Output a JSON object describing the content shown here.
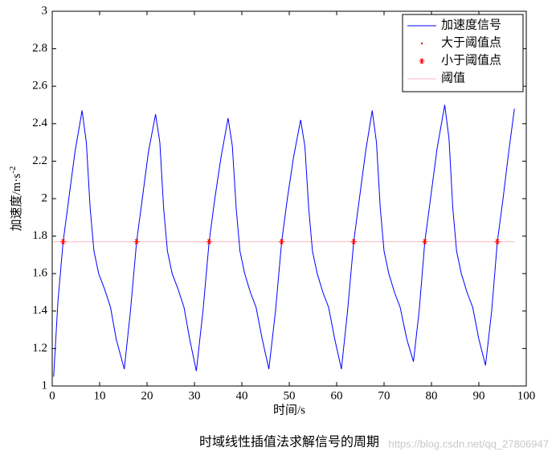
{
  "chart_data": {
    "type": "line",
    "xlabel": "时间/s",
    "ylabel": "加速度/m·s",
    "ylabel_sup": "-2",
    "caption": "时域线性插值法求解信号的周期",
    "watermark": "https://blog.csdn.net/qq_27806947",
    "xlim": [
      0,
      100
    ],
    "ylim": [
      1,
      3
    ],
    "xticks": [
      0,
      10,
      20,
      30,
      40,
      50,
      60,
      70,
      80,
      90,
      100
    ],
    "yticks": [
      1,
      {
        "value": 1.2,
        "label": "1.2"
      },
      {
        "value": 1.4,
        "label": "1.4"
      },
      {
        "value": 1.6,
        "label": "1.6"
      },
      {
        "value": 1.8,
        "label": "1.8"
      },
      2,
      {
        "value": 2.2,
        "label": "2.2"
      },
      {
        "value": 2.4,
        "label": "2.4"
      },
      {
        "value": 2.6,
        "label": "2.6"
      },
      {
        "value": 2.8,
        "label": "2.8"
      },
      3
    ],
    "legend": "upper right",
    "series": [
      {
        "name": "加速度信号",
        "color": "#0000ff",
        "marker": "none",
        "x": [
          0.3,
          1.2,
          2.3,
          3.5,
          4.8,
          6.3,
          7.2,
          8.0,
          8.8,
          9.8,
          11.0,
          12.3,
          13.5,
          15.2,
          16.5,
          17.8,
          19.0,
          20.3,
          21.8,
          22.7,
          23.5,
          24.3,
          25.3,
          26.5,
          27.8,
          29.0,
          30.4,
          31.8,
          33.1,
          34.3,
          35.6,
          37.1,
          38.0,
          38.8,
          39.6,
          40.6,
          41.8,
          43.0,
          44.3,
          45.7,
          47.1,
          48.4,
          49.6,
          50.9,
          52.4,
          53.3,
          54.1,
          54.9,
          55.9,
          57.1,
          58.3,
          59.6,
          61.0,
          62.3,
          63.6,
          64.8,
          66.1,
          67.5,
          68.4,
          69.2,
          70.0,
          71.0,
          72.2,
          73.4,
          74.8,
          76.2,
          77.4,
          78.6,
          79.8,
          81.2,
          82.8,
          83.7,
          84.5,
          85.3,
          86.3,
          87.5,
          88.7,
          90.0,
          91.4,
          92.7,
          93.9,
          95.1,
          96.3,
          97.5
        ],
        "values": [
          1.05,
          1.45,
          1.77,
          2.0,
          2.25,
          2.47,
          2.3,
          1.95,
          1.72,
          1.6,
          1.52,
          1.42,
          1.25,
          1.09,
          1.4,
          1.77,
          2.0,
          2.25,
          2.45,
          2.3,
          1.95,
          1.72,
          1.6,
          1.52,
          1.42,
          1.25,
          1.08,
          1.4,
          1.77,
          2.0,
          2.22,
          2.43,
          2.28,
          1.95,
          1.72,
          1.6,
          1.5,
          1.42,
          1.25,
          1.09,
          1.4,
          1.77,
          2.0,
          2.22,
          2.42,
          2.28,
          1.95,
          1.72,
          1.6,
          1.5,
          1.42,
          1.25,
          1.09,
          1.4,
          1.77,
          2.0,
          2.25,
          2.47,
          2.3,
          1.95,
          1.72,
          1.6,
          1.5,
          1.42,
          1.25,
          1.13,
          1.4,
          1.77,
          2.0,
          2.27,
          2.5,
          2.32,
          1.95,
          1.72,
          1.6,
          1.5,
          1.42,
          1.25,
          1.11,
          1.4,
          1.77,
          2.0,
          2.25,
          2.48
        ]
      },
      {
        "name": "大于阈值点",
        "color": "#ff0000",
        "marker": "dot",
        "x": [
          2.3,
          17.8,
          33.1,
          48.4,
          63.6,
          78.6,
          93.9
        ],
        "values": [
          1.77,
          1.77,
          1.77,
          1.77,
          1.77,
          1.77,
          1.77
        ]
      },
      {
        "name": "小于阈值点",
        "color": "#ff0000",
        "marker": "star",
        "x": [
          2.3,
          17.8,
          33.1,
          48.4,
          63.6,
          78.6,
          93.9
        ],
        "values": [
          1.77,
          1.77,
          1.77,
          1.77,
          1.77,
          1.77,
          1.77
        ]
      },
      {
        "name": "阈值",
        "color": "#ffb6c1",
        "marker": "none",
        "x": [
          0.3,
          97.5
        ],
        "values": [
          1.77,
          1.77
        ]
      }
    ]
  }
}
